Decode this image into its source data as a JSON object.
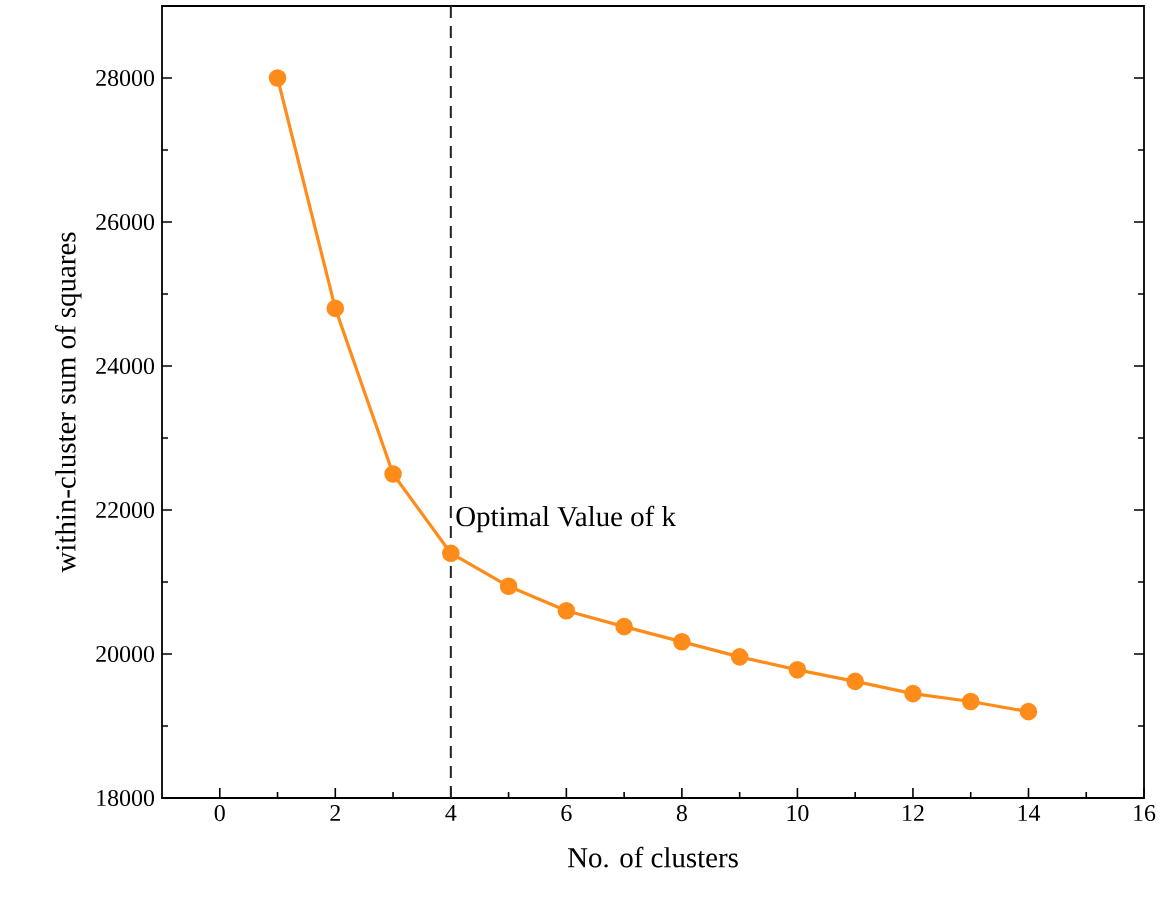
{
  "chart_data": {
    "type": "line",
    "xlabel": "No. of clusters",
    "ylabel": "within-cluster sum of squares",
    "x": [
      1,
      2,
      3,
      4,
      5,
      6,
      7,
      8,
      9,
      10,
      11,
      12,
      13,
      14
    ],
    "series": [
      {
        "color": "#ff8c1a",
        "values": [
          28000,
          24800,
          22500,
          21400,
          20940,
          20600,
          20380,
          20170,
          19960,
          19780,
          19620,
          19450,
          19340,
          19200
        ]
      }
    ],
    "xlim": [
      -1,
      16
    ],
    "xticks": [
      0,
      2,
      4,
      6,
      8,
      10,
      12,
      14,
      16
    ],
    "ylim": [
      18000,
      29000
    ],
    "yticks": [
      18000,
      20000,
      22000,
      24000,
      26000,
      28000
    ],
    "ref_lines": [
      {
        "axis": "x",
        "value": 4,
        "label": "Optimal Value of k",
        "color": "#222222",
        "line_style": "dashed"
      }
    ],
    "marker": "circle",
    "line_style": "solid",
    "grid": false
  }
}
